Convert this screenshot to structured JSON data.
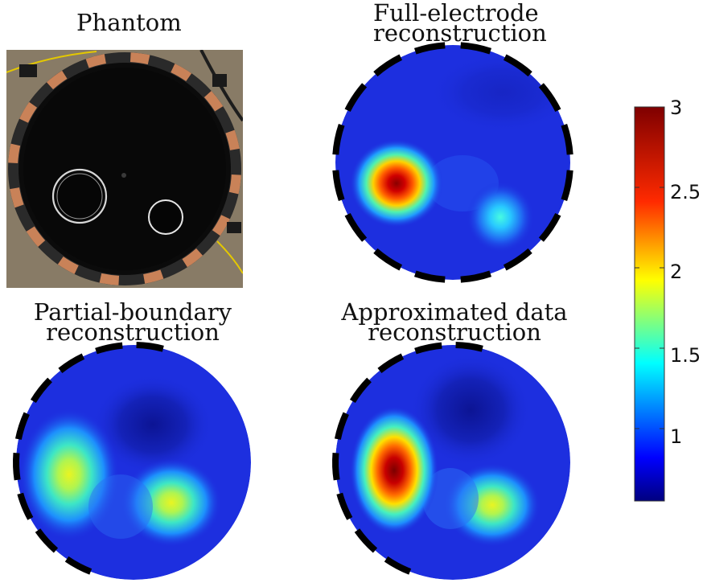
{
  "panels": {
    "phantom": {
      "title": "Phantom"
    },
    "full": {
      "title_line1": "Full-electrode",
      "title_line2": "reconstruction"
    },
    "partial": {
      "title_line1": "Partial-boundary",
      "title_line2": "reconstruction"
    },
    "approx": {
      "title_line1": "Approximated data",
      "title_line2": "reconstruction"
    }
  },
  "colorbar": {
    "colormap": "jet",
    "min": 0.55,
    "max": 3,
    "ticks": [
      "3",
      "2.5",
      "2",
      "1.5",
      "1"
    ]
  },
  "colors": {
    "background": "#1d2fdf",
    "electrode": "#000000",
    "tank": "#0d0d0d",
    "electrode_copper": "#c98258"
  }
}
